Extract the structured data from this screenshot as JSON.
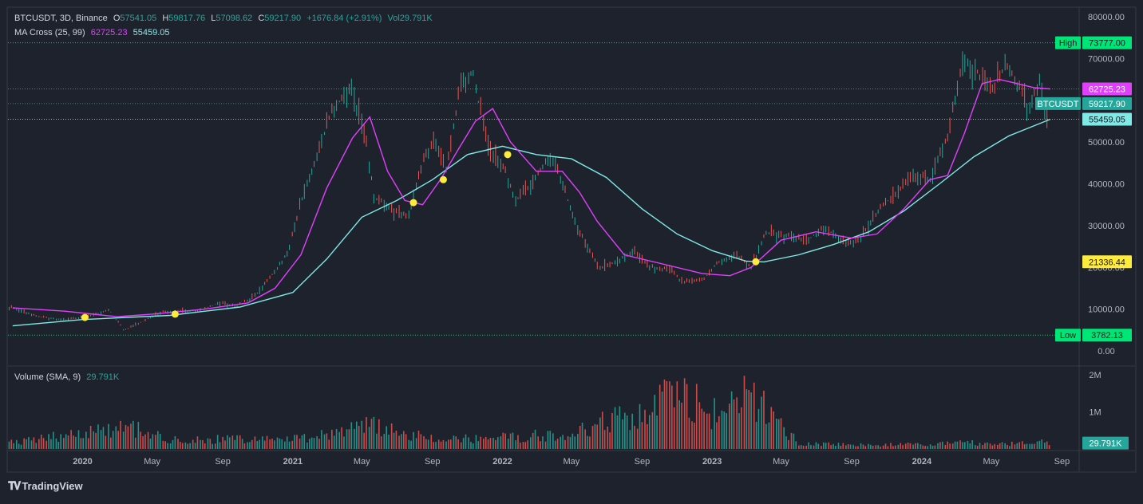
{
  "symbol_header": {
    "title": "BTCUSDT, 3D, Binance",
    "open_label": "O",
    "open": "57541.05",
    "high_label": "H",
    "high": "59817.76",
    "low_label": "L",
    "low": "57098.62",
    "close_label": "C",
    "close": "59217.90",
    "change": "+1676.84 (+2.91%)",
    "volume": "Vol29.791K"
  },
  "ma_indicator": {
    "name": "MA Cross (25, 99)",
    "fast_value": "62725.23",
    "slow_value": "55459.05"
  },
  "volume_indicator": {
    "name": "Volume (SMA, 9)",
    "value": "29.791K"
  },
  "price_axis_ticks": [
    "80000.00",
    "70000.00",
    "60000.00",
    "50000.00",
    "40000.00",
    "30000.00",
    "20000.00",
    "10000.00",
    "0.00"
  ],
  "volume_axis_ticks": [
    "2M",
    "1M"
  ],
  "time_axis_labels": [
    "2020",
    "May",
    "Sep",
    "2021",
    "May",
    "Sep",
    "2022",
    "May",
    "Sep",
    "2023",
    "May",
    "Sep",
    "2024",
    "May",
    "Sep"
  ],
  "price_tags": {
    "high_label": "High",
    "high_value": "73777.00",
    "ma_fast": "62725.23",
    "symbol": "BTCUSDT",
    "last": "59217.90",
    "ma_slow": "55459.05",
    "marker": "21336.44",
    "low_label": "Low",
    "low_value": "3782.13",
    "volume_last": "29.791K"
  },
  "branding": {
    "logo_text": "TradingView"
  },
  "colors": {
    "background": "#1e222d",
    "up": "#26a69a",
    "down": "#ef5350",
    "ma_fast": "#e040fb",
    "ma_slow": "#7fe9e6",
    "cross": "#ffeb3b",
    "high_low_line": "#00e676",
    "grid": "#2a2e39"
  },
  "chart_data": {
    "type": "line",
    "title": "BTCUSDT, 3D, Binance",
    "x_unit": "date",
    "y_scale": "linear",
    "ylim": [
      0,
      84000
    ],
    "grid": false,
    "series": [
      {
        "name": "BTCUSDT",
        "x": [
          "2019-09-01",
          "2019-10-15",
          "2019-12-01",
          "2020-01-15",
          "2020-02-15",
          "2020-03-13",
          "2020-04-15",
          "2020-05-15",
          "2020-06-15",
          "2020-07-25",
          "2020-08-25",
          "2020-09-25",
          "2020-10-25",
          "2020-11-25",
          "2020-12-25",
          "2021-01-15",
          "2021-02-15",
          "2021-03-10",
          "2021-04-14",
          "2021-05-10",
          "2021-05-22",
          "2021-06-20",
          "2021-07-20",
          "2021-08-20",
          "2021-09-05",
          "2021-09-25",
          "2021-10-20",
          "2021-11-10",
          "2021-12-05",
          "2022-01-05",
          "2022-01-25",
          "2022-02-20",
          "2022-03-28",
          "2022-04-15",
          "2022-05-10",
          "2022-06-18",
          "2022-07-15",
          "2022-08-15",
          "2022-09-15",
          "2022-10-20",
          "2022-11-10",
          "2022-12-15",
          "2023-01-10",
          "2023-02-10",
          "2023-03-10",
          "2023-04-05",
          "2023-05-10",
          "2023-06-15",
          "2023-07-15",
          "2023-08-20",
          "2023-09-15",
          "2023-10-20",
          "2023-11-15",
          "2023-12-15",
          "2024-01-15",
          "2024-02-15",
          "2024-03-14",
          "2024-04-10",
          "2024-05-05",
          "2024-05-25",
          "2024-06-20",
          "2024-07-05",
          "2024-07-25",
          "2024-08-05",
          "2024-08-12"
        ],
        "close": [
          10300,
          8200,
          7400,
          8500,
          9900,
          5000,
          7000,
          9300,
          9400,
          9700,
          11600,
          10700,
          13000,
          18000,
          24000,
          36000,
          48000,
          58000,
          63000,
          49000,
          37000,
          34000,
          32000,
          47000,
          50000,
          43000,
          64000,
          67000,
          49000,
          43000,
          36000,
          40000,
          47000,
          40000,
          30000,
          19500,
          21000,
          24000,
          20000,
          19500,
          16500,
          16800,
          21000,
          23000,
          20000,
          28500,
          27500,
          26500,
          29500,
          26000,
          26500,
          34500,
          37000,
          42000,
          41000,
          51000,
          71000,
          66000,
          62000,
          69000,
          63000,
          57000,
          66000,
          54000,
          59218
        ]
      },
      {
        "name": "MA 25",
        "x": [
          "2019-09-01",
          "2019-12-01",
          "2020-03-01",
          "2020-05-01",
          "2020-08-01",
          "2020-10-15",
          "2020-12-01",
          "2021-01-15",
          "2021-03-01",
          "2021-04-15",
          "2021-05-15",
          "2021-06-15",
          "2021-07-15",
          "2021-08-15",
          "2021-09-15",
          "2021-10-15",
          "2021-11-15",
          "2021-12-15",
          "2022-01-15",
          "2022-03-01",
          "2022-04-15",
          "2022-05-15",
          "2022-06-15",
          "2022-08-01",
          "2022-10-01",
          "2022-12-15",
          "2023-02-01",
          "2023-03-10",
          "2023-05-01",
          "2023-07-01",
          "2023-09-01",
          "2023-10-15",
          "2023-12-01",
          "2024-01-15",
          "2024-02-15",
          "2024-03-15",
          "2024-04-15",
          "2024-05-15",
          "2024-06-15",
          "2024-07-15",
          "2024-08-12"
        ],
        "values": [
          10300,
          9500,
          8200,
          8800,
          10000,
          11500,
          15000,
          23000,
          39000,
          51000,
          56000,
          43000,
          36000,
          35000,
          41000,
          48000,
          55000,
          58000,
          50000,
          43000,
          43000,
          38000,
          31000,
          23000,
          21000,
          18500,
          18000,
          20000,
          26500,
          28500,
          27000,
          28000,
          34000,
          41000,
          42000,
          52000,
          64000,
          65000,
          64000,
          63000,
          62725
        ]
      },
      {
        "name": "MA 99",
        "x": [
          "2019-09-01",
          "2020-01-01",
          "2020-06-01",
          "2020-10-01",
          "2021-01-01",
          "2021-03-01",
          "2021-05-01",
          "2021-07-01",
          "2021-09-01",
          "2021-11-01",
          "2022-01-01",
          "2022-03-01",
          "2022-05-01",
          "2022-07-01",
          "2022-09-01",
          "2022-11-01",
          "2023-01-01",
          "2023-03-01",
          "2023-04-01",
          "2023-06-01",
          "2023-08-01",
          "2023-10-01",
          "2023-12-01",
          "2024-02-01",
          "2024-04-01",
          "2024-06-01",
          "2024-08-12"
        ],
        "values": [
          6000,
          7500,
          8500,
          10500,
          14000,
          22000,
          32000,
          36000,
          41000,
          47000,
          49000,
          47000,
          46000,
          41500,
          34000,
          28000,
          24000,
          21500,
          21300,
          23000,
          25500,
          28500,
          33500,
          40000,
          46500,
          51500,
          55459
        ]
      }
    ],
    "volume": {
      "name": "Volume (SMA, 9)",
      "ticks": [
        "2M",
        "1M"
      ],
      "x": [
        "2019-09-01",
        "2020-03-13",
        "2020-06-01",
        "2021-01-15",
        "2021-05-20",
        "2021-09-01",
        "2022-01-01",
        "2022-05-10",
        "2022-06-18",
        "2022-08-01",
        "2022-11-10",
        "2023-01-15",
        "2023-03-13",
        "2023-03-20",
        "2023-06-01",
        "2023-09-01",
        "2024-01-01",
        "2024-03-15",
        "2024-06-01",
        "2024-08-05",
        "2024-08-12"
      ],
      "values": [
        200000,
        750000,
        280000,
        350000,
        750000,
        300000,
        350000,
        500000,
        850000,
        1000000,
        1750000,
        1000000,
        1900000,
        1500000,
        200000,
        130000,
        150000,
        200000,
        150000,
        250000,
        29791
      ]
    },
    "ma_crosses": [
      {
        "x": "2020-01-05",
        "y": 8000
      },
      {
        "x": "2020-06-10",
        "y": 8800
      },
      {
        "x": "2021-07-30",
        "y": 35500
      },
      {
        "x": "2021-09-20",
        "y": 41000
      },
      {
        "x": "2022-01-10",
        "y": 47000
      },
      {
        "x": "2023-03-18",
        "y": 21336
      }
    ],
    "reference_lines": [
      {
        "label": "High",
        "y": 73777
      },
      {
        "label": "Low",
        "y": 3782.13
      },
      {
        "label": "MA 25",
        "y": 62725.23
      },
      {
        "label": "BTCUSDT",
        "y": 59217.9
      },
      {
        "label": "MA 99",
        "y": 55459.05
      }
    ],
    "time_axis_labels": [
      "2020",
      "May",
      "Sep",
      "2021",
      "May",
      "Sep",
      "2022",
      "May",
      "Sep",
      "2023",
      "May",
      "Sep",
      "2024",
      "May",
      "Sep"
    ]
  }
}
